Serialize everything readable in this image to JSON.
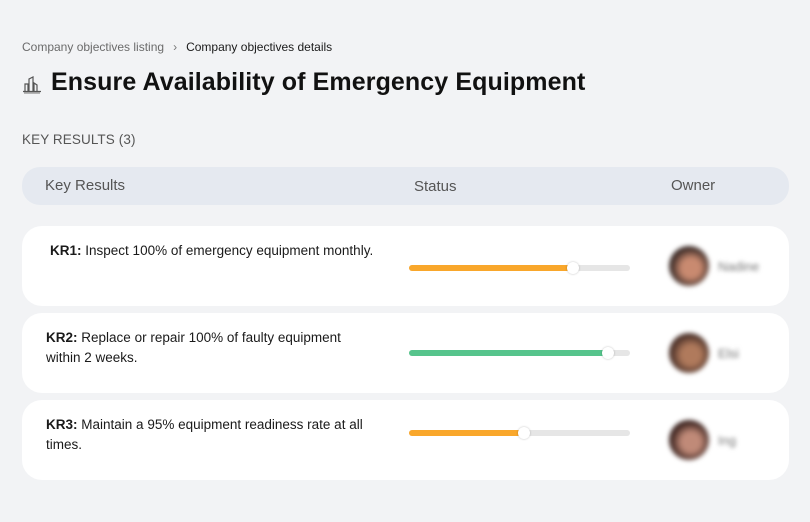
{
  "breadcrumb": {
    "items": [
      {
        "label": "Company objectives listing"
      },
      {
        "label": "Company objectives details"
      }
    ],
    "separator": "›"
  },
  "header": {
    "icon": "building-chart-icon",
    "title": "Ensure Availability of Emergency Equipment"
  },
  "key_results_section": {
    "label": "KEY RESULTS (3)",
    "columns": [
      "Key Results",
      "Status",
      "Owner"
    ],
    "rows": [
      {
        "code": "KR1:",
        "text": "Inspect 100% of emergency equipment monthly.",
        "progress": 74,
        "progress_color": "#f9a72b",
        "owner": {
          "name": "Nadine",
          "avatar_colors": [
            "#3a2a26",
            "#c98a70"
          ]
        }
      },
      {
        "code": "KR2:",
        "text": "Replace or repair 100% of faulty equipment within 2 weeks.",
        "progress": 90,
        "progress_color": "#56c48c",
        "owner": {
          "name": "Elsi",
          "avatar_colors": [
            "#4a3028",
            "#b07a5c"
          ]
        }
      },
      {
        "code": "KR3:",
        "text": "Maintain a 95% equipment readiness rate at all times.",
        "progress": 52,
        "progress_color": "#f9a72b",
        "owner": {
          "name": "Ing",
          "avatar_colors": [
            "#3a221e",
            "#c08a78"
          ]
        }
      }
    ]
  }
}
